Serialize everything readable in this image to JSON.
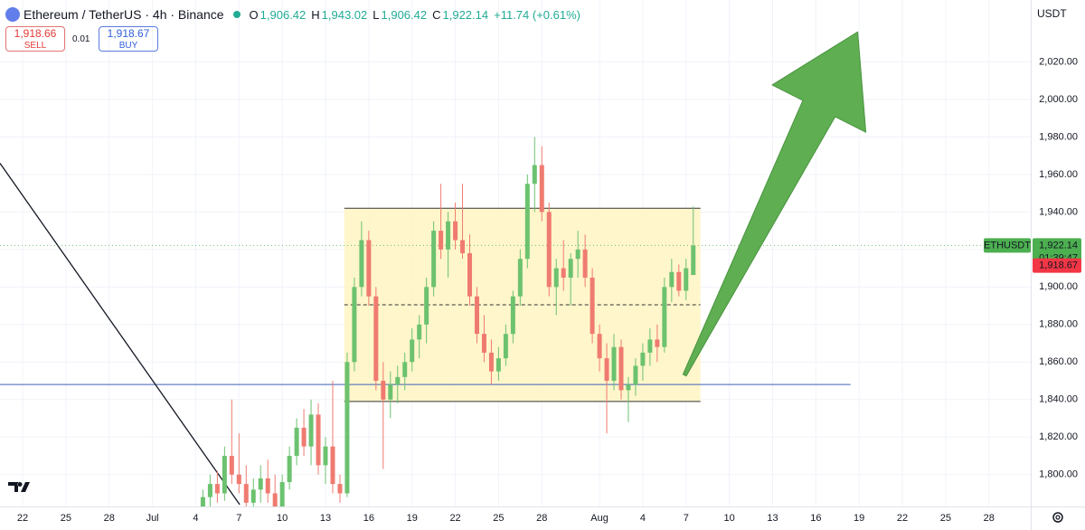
{
  "header": {
    "symbol": "Ethereum / TetherUS · 4h · Binance",
    "ohlc": [
      {
        "key": "O",
        "value": "1,906.42"
      },
      {
        "key": "H",
        "value": "1,943.02"
      },
      {
        "key": "L",
        "value": "1,906.42"
      },
      {
        "key": "C",
        "value": "1,922.14"
      }
    ],
    "change": "+11.74 (+0.61%)",
    "sell": {
      "price": "1,918.66",
      "label": "SELL"
    },
    "spread": "0.01",
    "buy": {
      "price": "1,918.67",
      "label": "BUY"
    },
    "currency": "USDT"
  },
  "chart_data": {
    "type": "candlestick",
    "up_color": "#6cc26f",
    "down_color": "#ef7b70",
    "x": [
      12.5,
      13,
      13.5,
      14,
      14.5,
      15,
      15.5,
      16,
      16.5,
      17,
      17.5,
      18,
      18.5,
      19,
      19.5,
      20,
      20.5,
      21,
      21.5,
      22,
      22.5,
      23,
      23.5,
      24,
      24.5,
      25,
      25.5,
      26,
      26.5,
      27,
      27.5,
      28,
      28.5,
      29,
      29.5,
      30,
      30.5,
      31,
      31.5,
      32,
      32.5,
      33,
      33.5,
      34,
      34.5,
      35,
      35.5,
      36,
      36.5,
      37,
      37.5,
      38,
      38.5,
      39,
      39.5,
      40,
      40.5,
      41,
      41.5,
      42,
      42.5,
      43,
      43.5,
      44,
      44.5,
      45,
      45.5,
      46,
      46.5
    ],
    "open": [
      1780,
      1788,
      1795,
      1790,
      1810,
      1800,
      1795,
      1785,
      1792,
      1798,
      1790,
      1782,
      1796,
      1810,
      1825,
      1815,
      1832,
      1805,
      1815,
      1795,
      1790,
      1860,
      1900,
      1925,
      1895,
      1850,
      1840,
      1848,
      1852,
      1860,
      1872,
      1880,
      1900,
      1930,
      1920,
      1935,
      1925,
      1918,
      1895,
      1875,
      1865,
      1855,
      1862,
      1875,
      1895,
      1915,
      1955,
      1965,
      1940,
      1900,
      1910,
      1905,
      1915,
      1920,
      1905,
      1875,
      1862,
      1850,
      1868,
      1845,
      1848,
      1858,
      1865,
      1872,
      1868,
      1900,
      1908,
      1898,
      1906.42
    ],
    "high": [
      1792,
      1800,
      1802,
      1815,
      1840,
      1822,
      1805,
      1798,
      1805,
      1808,
      1800,
      1800,
      1815,
      1830,
      1835,
      1840,
      1838,
      1820,
      1850,
      1800,
      1865,
      1905,
      1935,
      1930,
      1900,
      1860,
      1855,
      1858,
      1865,
      1878,
      1885,
      1905,
      1935,
      1955,
      1940,
      1945,
      1955,
      1928,
      1900,
      1885,
      1872,
      1868,
      1880,
      1898,
      1920,
      1960,
      1980,
      1975,
      1945,
      1915,
      1925,
      1918,
      1930,
      1928,
      1910,
      1880,
      1870,
      1875,
      1872,
      1852,
      1862,
      1870,
      1878,
      1880,
      1905,
      1915,
      1912,
      1915,
      1943.02
    ],
    "low": [
      1775,
      1783,
      1785,
      1786,
      1795,
      1790,
      1780,
      1776,
      1785,
      1785,
      1778,
      1778,
      1792,
      1805,
      1810,
      1805,
      1800,
      1795,
      1790,
      1785,
      1788,
      1855,
      1895,
      1890,
      1845,
      1803,
      1830,
      1838,
      1845,
      1855,
      1862,
      1870,
      1895,
      1915,
      1905,
      1920,
      1915,
      1890,
      1870,
      1860,
      1848,
      1850,
      1858,
      1870,
      1890,
      1910,
      1940,
      1935,
      1895,
      1885,
      1898,
      1890,
      1905,
      1900,
      1870,
      1855,
      1822,
      1845,
      1840,
      1828,
      1842,
      1850,
      1858,
      1860,
      1865,
      1892,
      1895,
      1893,
      1906.42
    ],
    "close": [
      1788,
      1795,
      1790,
      1810,
      1800,
      1795,
      1785,
      1792,
      1798,
      1790,
      1782,
      1796,
      1810,
      1825,
      1815,
      1832,
      1805,
      1815,
      1795,
      1790,
      1860,
      1900,
      1925,
      1895,
      1850,
      1840,
      1848,
      1852,
      1860,
      1872,
      1880,
      1900,
      1930,
      1920,
      1935,
      1925,
      1918,
      1895,
      1875,
      1865,
      1855,
      1862,
      1875,
      1895,
      1915,
      1955,
      1965,
      1940,
      1900,
      1910,
      1905,
      1915,
      1920,
      1905,
      1875,
      1862,
      1850,
      1868,
      1845,
      1848,
      1858,
      1865,
      1872,
      1868,
      1900,
      1908,
      1898,
      1910,
      1922.14
    ],
    "xlim": [
      -1.57,
      69.9
    ],
    "xticks": [
      {
        "value": 0,
        "label": "22"
      },
      {
        "value": 3,
        "label": "25"
      },
      {
        "value": 6,
        "label": "28"
      },
      {
        "value": 9,
        "label": "Jul"
      },
      {
        "value": 12,
        "label": "4"
      },
      {
        "value": 15,
        "label": "7"
      },
      {
        "value": 18,
        "label": "10"
      },
      {
        "value": 21,
        "label": "13"
      },
      {
        "value": 24,
        "label": "16"
      },
      {
        "value": 27,
        "label": "19"
      },
      {
        "value": 30,
        "label": "22"
      },
      {
        "value": 33,
        "label": "25"
      },
      {
        "value": 36,
        "label": "28"
      },
      {
        "value": 40,
        "label": "Aug"
      },
      {
        "value": 43,
        "label": "4"
      },
      {
        "value": 46,
        "label": "7"
      },
      {
        "value": 49,
        "label": "10"
      },
      {
        "value": 52,
        "label": "13"
      },
      {
        "value": 55,
        "label": "16"
      },
      {
        "value": 58,
        "label": "19"
      },
      {
        "value": 61,
        "label": "22"
      },
      {
        "value": 64,
        "label": "25"
      },
      {
        "value": 67,
        "label": "28"
      }
    ],
    "ylim": [
      1783,
      2053
    ],
    "yticks": [
      {
        "value": 1800,
        "label": "1,800.00"
      },
      {
        "value": 1820,
        "label": "1,820.00"
      },
      {
        "value": 1840,
        "label": "1,840.00"
      },
      {
        "value": 1860,
        "label": "1,860.00"
      },
      {
        "value": 1880,
        "label": "1,880.00"
      },
      {
        "value": 1900,
        "label": "1,900.00"
      },
      {
        "value": 1920,
        "label": "1,920.00"
      },
      {
        "value": 1940,
        "label": "1,940.00"
      },
      {
        "value": 1960,
        "label": "1,960.00"
      },
      {
        "value": 1980,
        "label": "1,980.00"
      },
      {
        "value": 2000,
        "label": "2,000.00"
      },
      {
        "value": 2020,
        "label": "2,020.00"
      }
    ],
    "grid": true,
    "last_price": {
      "value": 1922.14,
      "symbol": "ETHUSDT",
      "label": "1,922.14",
      "countdown": "01:39:47",
      "color": "#4caf50"
    },
    "bid_price": {
      "value": 1918.67,
      "label": "1,918.67",
      "color": "#f23645"
    },
    "drawings": {
      "range_box": {
        "x": [
          22.3,
          47
        ],
        "y": [
          1839,
          1942
        ],
        "color": "#fff5c2"
      },
      "midline": 1890.5,
      "support_line": {
        "x": [
          -1.57,
          57.4
        ],
        "y": 1848,
        "color": "#3d5fb8"
      },
      "trend_line": {
        "x": [
          -1.57,
          15.05
        ],
        "y": [
          1966,
          1784
        ]
      },
      "arrow": {
        "x": [
          45.9,
          57.9
        ],
        "y": [
          1853,
          2036
        ],
        "color": "#5fae52"
      }
    }
  }
}
